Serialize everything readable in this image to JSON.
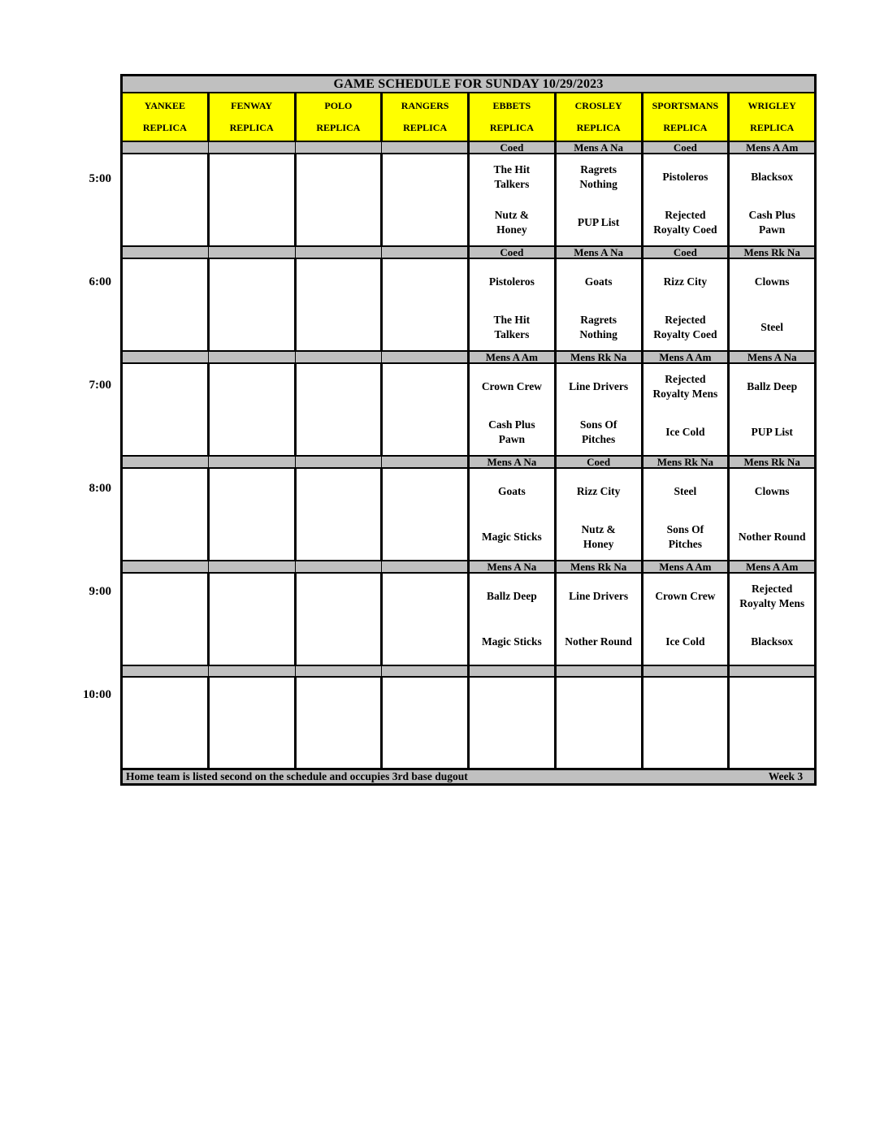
{
  "title": "GAME SCHEDULE FOR SUNDAY 10/29/2023",
  "colors": {
    "field_header_fill": "#ffff00",
    "band_fill": "#c0c0c0",
    "grid_line": "#000000"
  },
  "fields": [
    {
      "name": "YANKEE",
      "sub": "REPLICA"
    },
    {
      "name": "FENWAY",
      "sub": "REPLICA"
    },
    {
      "name": "POLO",
      "sub": "REPLICA"
    },
    {
      "name": "RANGERS",
      "sub": "REPLICA"
    },
    {
      "name": "EBBETS",
      "sub": "REPLICA"
    },
    {
      "name": "CROSLEY",
      "sub": "REPLICA"
    },
    {
      "name": "SPORTSMANS",
      "sub": "REPLICA"
    },
    {
      "name": "WRIGLEY",
      "sub": "REPLICA"
    }
  ],
  "blocks": [
    {
      "time": "5:00",
      "leagues": [
        "Coed",
        "Mens A Na",
        "Coed",
        "Mens A Am"
      ],
      "games": [
        {
          "away": "The Hit\nTalkers",
          "home": "Nutz &\nHoney"
        },
        {
          "away": "Ragrets\nNothing",
          "home": "PUP List"
        },
        {
          "away": "Pistoleros",
          "home": "Rejected\nRoyalty Coed"
        },
        {
          "away": "Blacksox",
          "home": "Cash Plus\nPawn"
        }
      ]
    },
    {
      "time": "6:00",
      "leagues": [
        "Coed",
        "Mens A Na",
        "Coed",
        "Mens Rk Na"
      ],
      "games": [
        {
          "away": "Pistoleros",
          "home": "The Hit\nTalkers"
        },
        {
          "away": "Goats",
          "home": "Ragrets\nNothing"
        },
        {
          "away": "Rizz City",
          "home": "Rejected\nRoyalty Coed"
        },
        {
          "away": "Clowns",
          "home": "Steel"
        }
      ]
    },
    {
      "time": "7:00",
      "leagues": [
        "Mens A Am",
        "Mens Rk Na",
        "Mens A Am",
        "Mens A Na"
      ],
      "games": [
        {
          "away": "Crown Crew",
          "home": "Cash Plus\nPawn"
        },
        {
          "away": "Line Drivers",
          "home": "Sons Of\nPitches"
        },
        {
          "away": "Rejected\nRoyalty Mens",
          "home": "Ice Cold"
        },
        {
          "away": "Ballz Deep",
          "home": "PUP List"
        }
      ]
    },
    {
      "time": "8:00",
      "leagues": [
        "Mens A Na",
        "Coed",
        "Mens Rk Na",
        "Mens Rk Na"
      ],
      "games": [
        {
          "away": "Goats",
          "home": "Magic Sticks"
        },
        {
          "away": "Rizz City",
          "home": "Nutz &\nHoney"
        },
        {
          "away": "Steel",
          "home": "Sons Of\nPitches"
        },
        {
          "away": "Clowns",
          "home": "Nother Round"
        }
      ]
    },
    {
      "time": "9:00",
      "leagues": [
        "Mens A Na",
        "Mens Rk Na",
        "Mens A Am",
        "Mens A Am"
      ],
      "games": [
        {
          "away": "Ballz Deep",
          "home": "Magic Sticks"
        },
        {
          "away": "Line Drivers",
          "home": "Nother Round"
        },
        {
          "away": "Crown Crew",
          "home": "Ice Cold"
        },
        {
          "away": "Rejected\nRoyalty Mens",
          "home": "Blacksox"
        }
      ]
    },
    {
      "time": "10:00",
      "leagues": [
        "",
        "",
        "",
        ""
      ],
      "games": [
        {
          "away": "",
          "home": ""
        },
        {
          "away": "",
          "home": ""
        },
        {
          "away": "",
          "home": ""
        },
        {
          "away": "",
          "home": ""
        }
      ]
    }
  ],
  "footer": {
    "note": "Home team is listed second on the schedule and occupies 3rd base dugout",
    "week": "Week 3"
  }
}
